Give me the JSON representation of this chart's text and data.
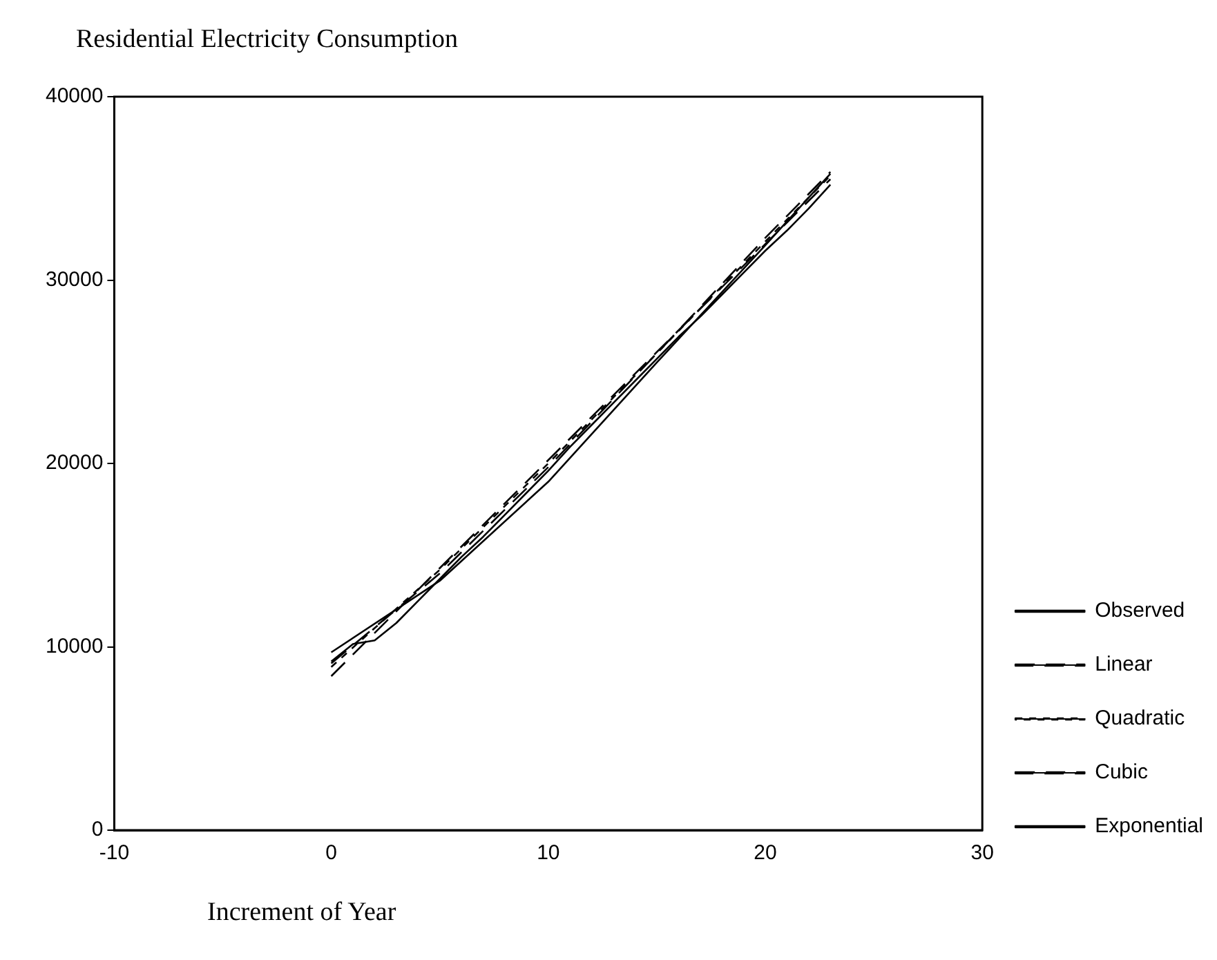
{
  "chart_data": {
    "type": "line",
    "title": "Residential Electricity Consumption",
    "xlabel": "Increment of Year",
    "xlim": [
      -10,
      30
    ],
    "xticks": [
      -10,
      0,
      10,
      20,
      30
    ],
    "ylim": [
      0,
      40000
    ],
    "yticks": [
      0,
      10000,
      20000,
      30000,
      40000
    ],
    "grid": false,
    "legend": "right",
    "marker": "none",
    "series": [
      {
        "name": "Observed",
        "color": "#000000",
        "line_style": "solid",
        "x": [
          0,
          1,
          2,
          3,
          4,
          5,
          6,
          7,
          8,
          9,
          10,
          11,
          12,
          13,
          14,
          15,
          16,
          17,
          18,
          19,
          20,
          21,
          22,
          23
        ],
        "values": [
          9200,
          10150,
          10350,
          11300,
          12500,
          13700,
          14900,
          16000,
          17200,
          18400,
          19600,
          20900,
          22100,
          23300,
          24500,
          25700,
          26900,
          28000,
          29200,
          30400,
          31600,
          32700,
          33900,
          35200
        ]
      },
      {
        "name": "Linear",
        "color": "#000000",
        "line_style": "dashed",
        "x": [
          0,
          23
        ],
        "values": [
          8400,
          35500
        ]
      },
      {
        "name": "Quadratic",
        "color": "#000000",
        "line_style": "dotted",
        "x": [
          0,
          5,
          10,
          15,
          20,
          23
        ],
        "values": [
          8900,
          14200,
          20000,
          26000,
          32100,
          35700
        ]
      },
      {
        "name": "Cubic",
        "color": "#000000",
        "line_style": "dashed",
        "x": [
          0,
          5,
          10,
          15,
          20,
          23
        ],
        "values": [
          9100,
          14000,
          19800,
          26000,
          32300,
          35900
        ]
      },
      {
        "name": "Exponential",
        "color": "#000000",
        "line_style": "solid",
        "x": [
          0,
          5,
          10,
          15,
          20,
          23
        ],
        "values": [
          9700,
          13600,
          19000,
          25500,
          31900,
          35800
        ]
      }
    ]
  }
}
